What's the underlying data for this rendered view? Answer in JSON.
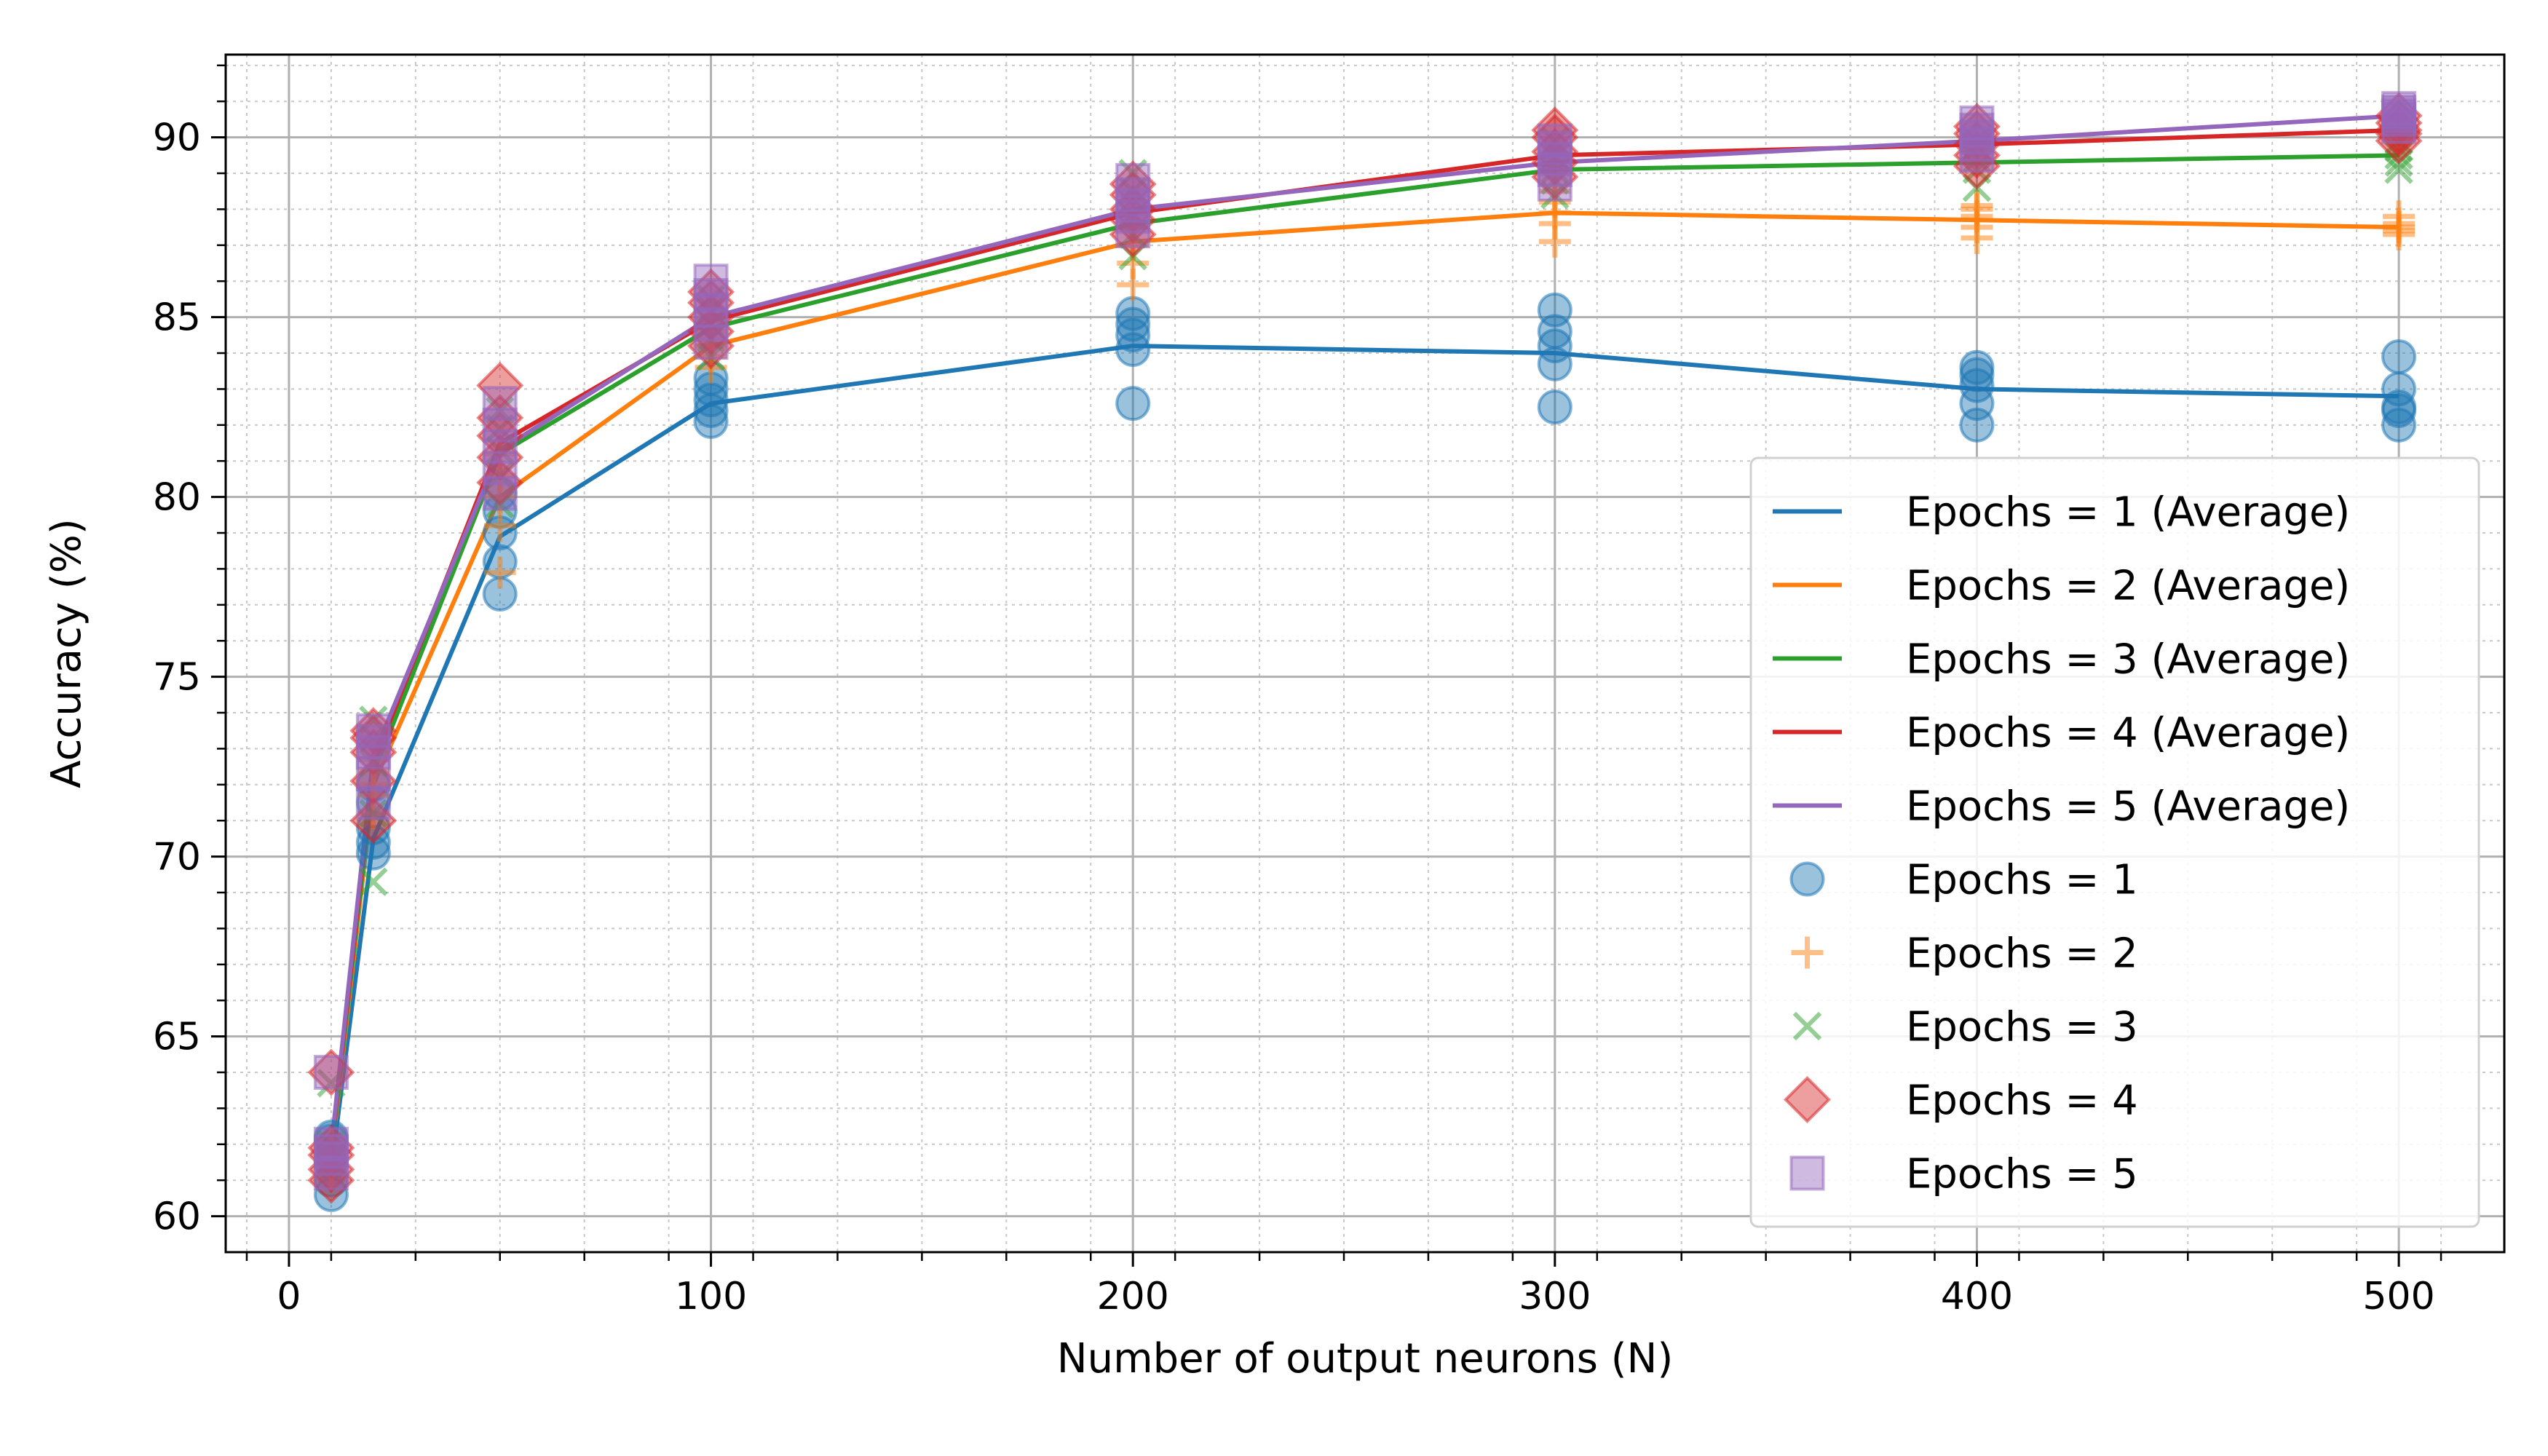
{
  "chart_data": {
    "type": "scatter",
    "title": "",
    "xlabel": "Number of output neurons (N)",
    "ylabel": "Accuracy (%)",
    "xlim": [
      -15,
      525
    ],
    "ylim": [
      59.0,
      92.3
    ],
    "xticks": [
      0,
      100,
      200,
      300,
      400,
      500
    ],
    "yticks": [
      60,
      65,
      70,
      75,
      80,
      85,
      90
    ],
    "grid": true,
    "minor_grid": true,
    "legend": {
      "placement": "lower-right"
    },
    "series": [
      {
        "name": "Epochs = 1 (Average)",
        "kind": "line",
        "color": "#1f77b4",
        "x": [
          10,
          20,
          50,
          100,
          200,
          300,
          400,
          500
        ],
        "y": [
          61.3,
          70.5,
          78.9,
          82.6,
          84.2,
          84.0,
          83.0,
          82.8
        ]
      },
      {
        "name": "Epochs = 2 (Average)",
        "kind": "line",
        "color": "#ff7f0e",
        "x": [
          10,
          20,
          50,
          100,
          200,
          300,
          400,
          500
        ],
        "y": [
          61.6,
          72.0,
          80.0,
          84.2,
          87.1,
          87.9,
          87.7,
          87.5
        ]
      },
      {
        "name": "Epochs = 3 (Average)",
        "kind": "line",
        "color": "#2ca02c",
        "x": [
          10,
          20,
          50,
          100,
          200,
          300,
          400,
          500
        ],
        "y": [
          61.7,
          72.3,
          81.2,
          84.7,
          87.6,
          89.1,
          89.3,
          89.5
        ]
      },
      {
        "name": "Epochs = 4 (Average)",
        "kind": "line",
        "color": "#d62728",
        "x": [
          10,
          20,
          50,
          100,
          200,
          300,
          400,
          500
        ],
        "y": [
          61.8,
          72.6,
          81.5,
          84.9,
          87.9,
          89.5,
          89.8,
          90.2
        ]
      },
      {
        "name": "Epochs = 5 (Average)",
        "kind": "line",
        "color": "#9467bd",
        "x": [
          10,
          20,
          50,
          100,
          200,
          300,
          400,
          500
        ],
        "y": [
          61.9,
          72.8,
          81.3,
          85.0,
          88.0,
          89.3,
          89.9,
          90.6
        ]
      },
      {
        "name": "Epochs = 1",
        "kind": "scatter",
        "marker": "circle",
        "color": "#1f77b4",
        "points": [
          [
            10,
            60.6
          ],
          [
            10,
            61.0
          ],
          [
            10,
            61.5
          ],
          [
            10,
            62.1
          ],
          [
            10,
            62.2
          ],
          [
            20,
            70.1
          ],
          [
            20,
            70.4
          ],
          [
            20,
            70.8
          ],
          [
            20,
            71.5
          ],
          [
            20,
            72.0
          ],
          [
            50,
            77.3
          ],
          [
            50,
            78.2
          ],
          [
            50,
            79.0
          ],
          [
            50,
            79.6
          ],
          [
            50,
            80.1
          ],
          [
            100,
            82.1
          ],
          [
            100,
            82.4
          ],
          [
            100,
            82.7
          ],
          [
            100,
            83.0
          ],
          [
            100,
            83.3
          ],
          [
            200,
            82.6
          ],
          [
            200,
            84.1
          ],
          [
            200,
            84.5
          ],
          [
            200,
            84.8
          ],
          [
            200,
            85.1
          ],
          [
            300,
            82.5
          ],
          [
            300,
            83.7
          ],
          [
            300,
            84.2
          ],
          [
            300,
            84.6
          ],
          [
            300,
            85.2
          ],
          [
            400,
            82.0
          ],
          [
            400,
            82.6
          ],
          [
            400,
            83.1
          ],
          [
            400,
            83.4
          ],
          [
            400,
            83.6
          ],
          [
            500,
            82.0
          ],
          [
            500,
            82.4
          ],
          [
            500,
            82.5
          ],
          [
            500,
            83.0
          ],
          [
            500,
            83.9
          ]
        ]
      },
      {
        "name": "Epochs = 2",
        "kind": "scatter",
        "marker": "plus",
        "color": "#ff7f0e",
        "points": [
          [
            10,
            61.2
          ],
          [
            10,
            61.5
          ],
          [
            10,
            61.8
          ],
          [
            10,
            62.0
          ],
          [
            10,
            61.4
          ],
          [
            20,
            71.2
          ],
          [
            20,
            71.7
          ],
          [
            20,
            72.0
          ],
          [
            20,
            72.4
          ],
          [
            20,
            72.7
          ],
          [
            50,
            77.9
          ],
          [
            50,
            79.2
          ],
          [
            50,
            80.0
          ],
          [
            50,
            80.6
          ],
          [
            50,
            81.2
          ],
          [
            100,
            83.6
          ],
          [
            100,
            83.9
          ],
          [
            100,
            84.2
          ],
          [
            100,
            84.6
          ],
          [
            100,
            84.9
          ],
          [
            200,
            85.9
          ],
          [
            200,
            86.5
          ],
          [
            200,
            87.0
          ],
          [
            200,
            87.5
          ],
          [
            200,
            87.9
          ],
          [
            300,
            87.1
          ],
          [
            300,
            87.6
          ],
          [
            300,
            87.9
          ],
          [
            300,
            88.2
          ],
          [
            300,
            88.5
          ],
          [
            400,
            87.2
          ],
          [
            400,
            87.5
          ],
          [
            400,
            87.8
          ],
          [
            400,
            88.0
          ],
          [
            400,
            88.1
          ],
          [
            500,
            87.3
          ],
          [
            500,
            87.5
          ],
          [
            500,
            87.6
          ],
          [
            500,
            87.8
          ],
          [
            500,
            87.4
          ]
        ]
      },
      {
        "name": "Epochs = 3",
        "kind": "scatter",
        "marker": "x",
        "color": "#2ca02c",
        "points": [
          [
            10,
            61.3
          ],
          [
            10,
            61.7
          ],
          [
            10,
            62.0
          ],
          [
            10,
            63.7
          ],
          [
            10,
            61.5
          ],
          [
            20,
            69.3
          ],
          [
            20,
            71.2
          ],
          [
            20,
            72.6
          ],
          [
            20,
            73.3
          ],
          [
            20,
            73.8
          ],
          [
            50,
            79.8
          ],
          [
            50,
            80.6
          ],
          [
            50,
            81.3
          ],
          [
            50,
            81.9
          ],
          [
            50,
            82.4
          ],
          [
            100,
            83.9
          ],
          [
            100,
            84.4
          ],
          [
            100,
            84.8
          ],
          [
            100,
            85.2
          ],
          [
            100,
            85.5
          ],
          [
            200,
            86.7
          ],
          [
            200,
            87.3
          ],
          [
            200,
            87.8
          ],
          [
            200,
            88.5
          ],
          [
            200,
            89.0
          ],
          [
            300,
            88.4
          ],
          [
            300,
            88.8
          ],
          [
            300,
            89.1
          ],
          [
            300,
            89.5
          ],
          [
            300,
            89.9
          ],
          [
            400,
            88.6
          ],
          [
            400,
            89.1
          ],
          [
            400,
            89.4
          ],
          [
            400,
            89.7
          ],
          [
            400,
            89.9
          ],
          [
            500,
            89.1
          ],
          [
            500,
            89.3
          ],
          [
            500,
            89.5
          ],
          [
            500,
            89.7
          ],
          [
            500,
            89.9
          ]
        ]
      },
      {
        "name": "Epochs = 4",
        "kind": "scatter",
        "marker": "diamond",
        "color": "#d62728",
        "points": [
          [
            10,
            61.0
          ],
          [
            10,
            61.3
          ],
          [
            10,
            61.7
          ],
          [
            10,
            64.0
          ],
          [
            10,
            61.9
          ],
          [
            20,
            71.0
          ],
          [
            20,
            72.1
          ],
          [
            20,
            72.9
          ],
          [
            20,
            73.3
          ],
          [
            20,
            73.5
          ],
          [
            50,
            80.4
          ],
          [
            50,
            81.1
          ],
          [
            50,
            81.7
          ],
          [
            50,
            82.2
          ],
          [
            50,
            83.1
          ],
          [
            100,
            84.2
          ],
          [
            100,
            84.6
          ],
          [
            100,
            85.0
          ],
          [
            100,
            85.4
          ],
          [
            100,
            85.7
          ],
          [
            200,
            87.3
          ],
          [
            200,
            87.7
          ],
          [
            200,
            88.0
          ],
          [
            200,
            88.4
          ],
          [
            200,
            88.7
          ],
          [
            300,
            88.9
          ],
          [
            300,
            89.3
          ],
          [
            300,
            89.6
          ],
          [
            300,
            90.0
          ],
          [
            300,
            90.2
          ],
          [
            400,
            89.2
          ],
          [
            400,
            89.5
          ],
          [
            400,
            89.8
          ],
          [
            400,
            90.1
          ],
          [
            400,
            90.3
          ],
          [
            500,
            89.9
          ],
          [
            500,
            90.1
          ],
          [
            500,
            90.2
          ],
          [
            500,
            90.4
          ],
          [
            500,
            90.6
          ]
        ]
      },
      {
        "name": "Epochs = 5",
        "kind": "scatter",
        "marker": "square",
        "color": "#9467bd",
        "points": [
          [
            10,
            61.2
          ],
          [
            10,
            61.6
          ],
          [
            10,
            62.0
          ],
          [
            10,
            64.0
          ],
          [
            10,
            61.8
          ],
          [
            20,
            71.5
          ],
          [
            20,
            72.3
          ],
          [
            20,
            72.9
          ],
          [
            20,
            73.2
          ],
          [
            20,
            73.5
          ],
          [
            50,
            80.1
          ],
          [
            50,
            80.8
          ],
          [
            50,
            81.4
          ],
          [
            50,
            82.0
          ],
          [
            50,
            82.6
          ],
          [
            100,
            84.3
          ],
          [
            100,
            84.8
          ],
          [
            100,
            85.2
          ],
          [
            100,
            85.6
          ],
          [
            100,
            86.0
          ],
          [
            200,
            87.4
          ],
          [
            200,
            87.8
          ],
          [
            200,
            88.1
          ],
          [
            200,
            88.4
          ],
          [
            200,
            88.8
          ],
          [
            300,
            88.7
          ],
          [
            300,
            89.1
          ],
          [
            300,
            89.4
          ],
          [
            300,
            89.7
          ],
          [
            300,
            89.9
          ],
          [
            400,
            89.5
          ],
          [
            400,
            89.8
          ],
          [
            400,
            90.0
          ],
          [
            400,
            90.2
          ],
          [
            400,
            90.4
          ],
          [
            500,
            90.3
          ],
          [
            500,
            90.5
          ],
          [
            500,
            90.6
          ],
          [
            500,
            90.7
          ],
          [
            500,
            90.8
          ]
        ]
      }
    ]
  }
}
